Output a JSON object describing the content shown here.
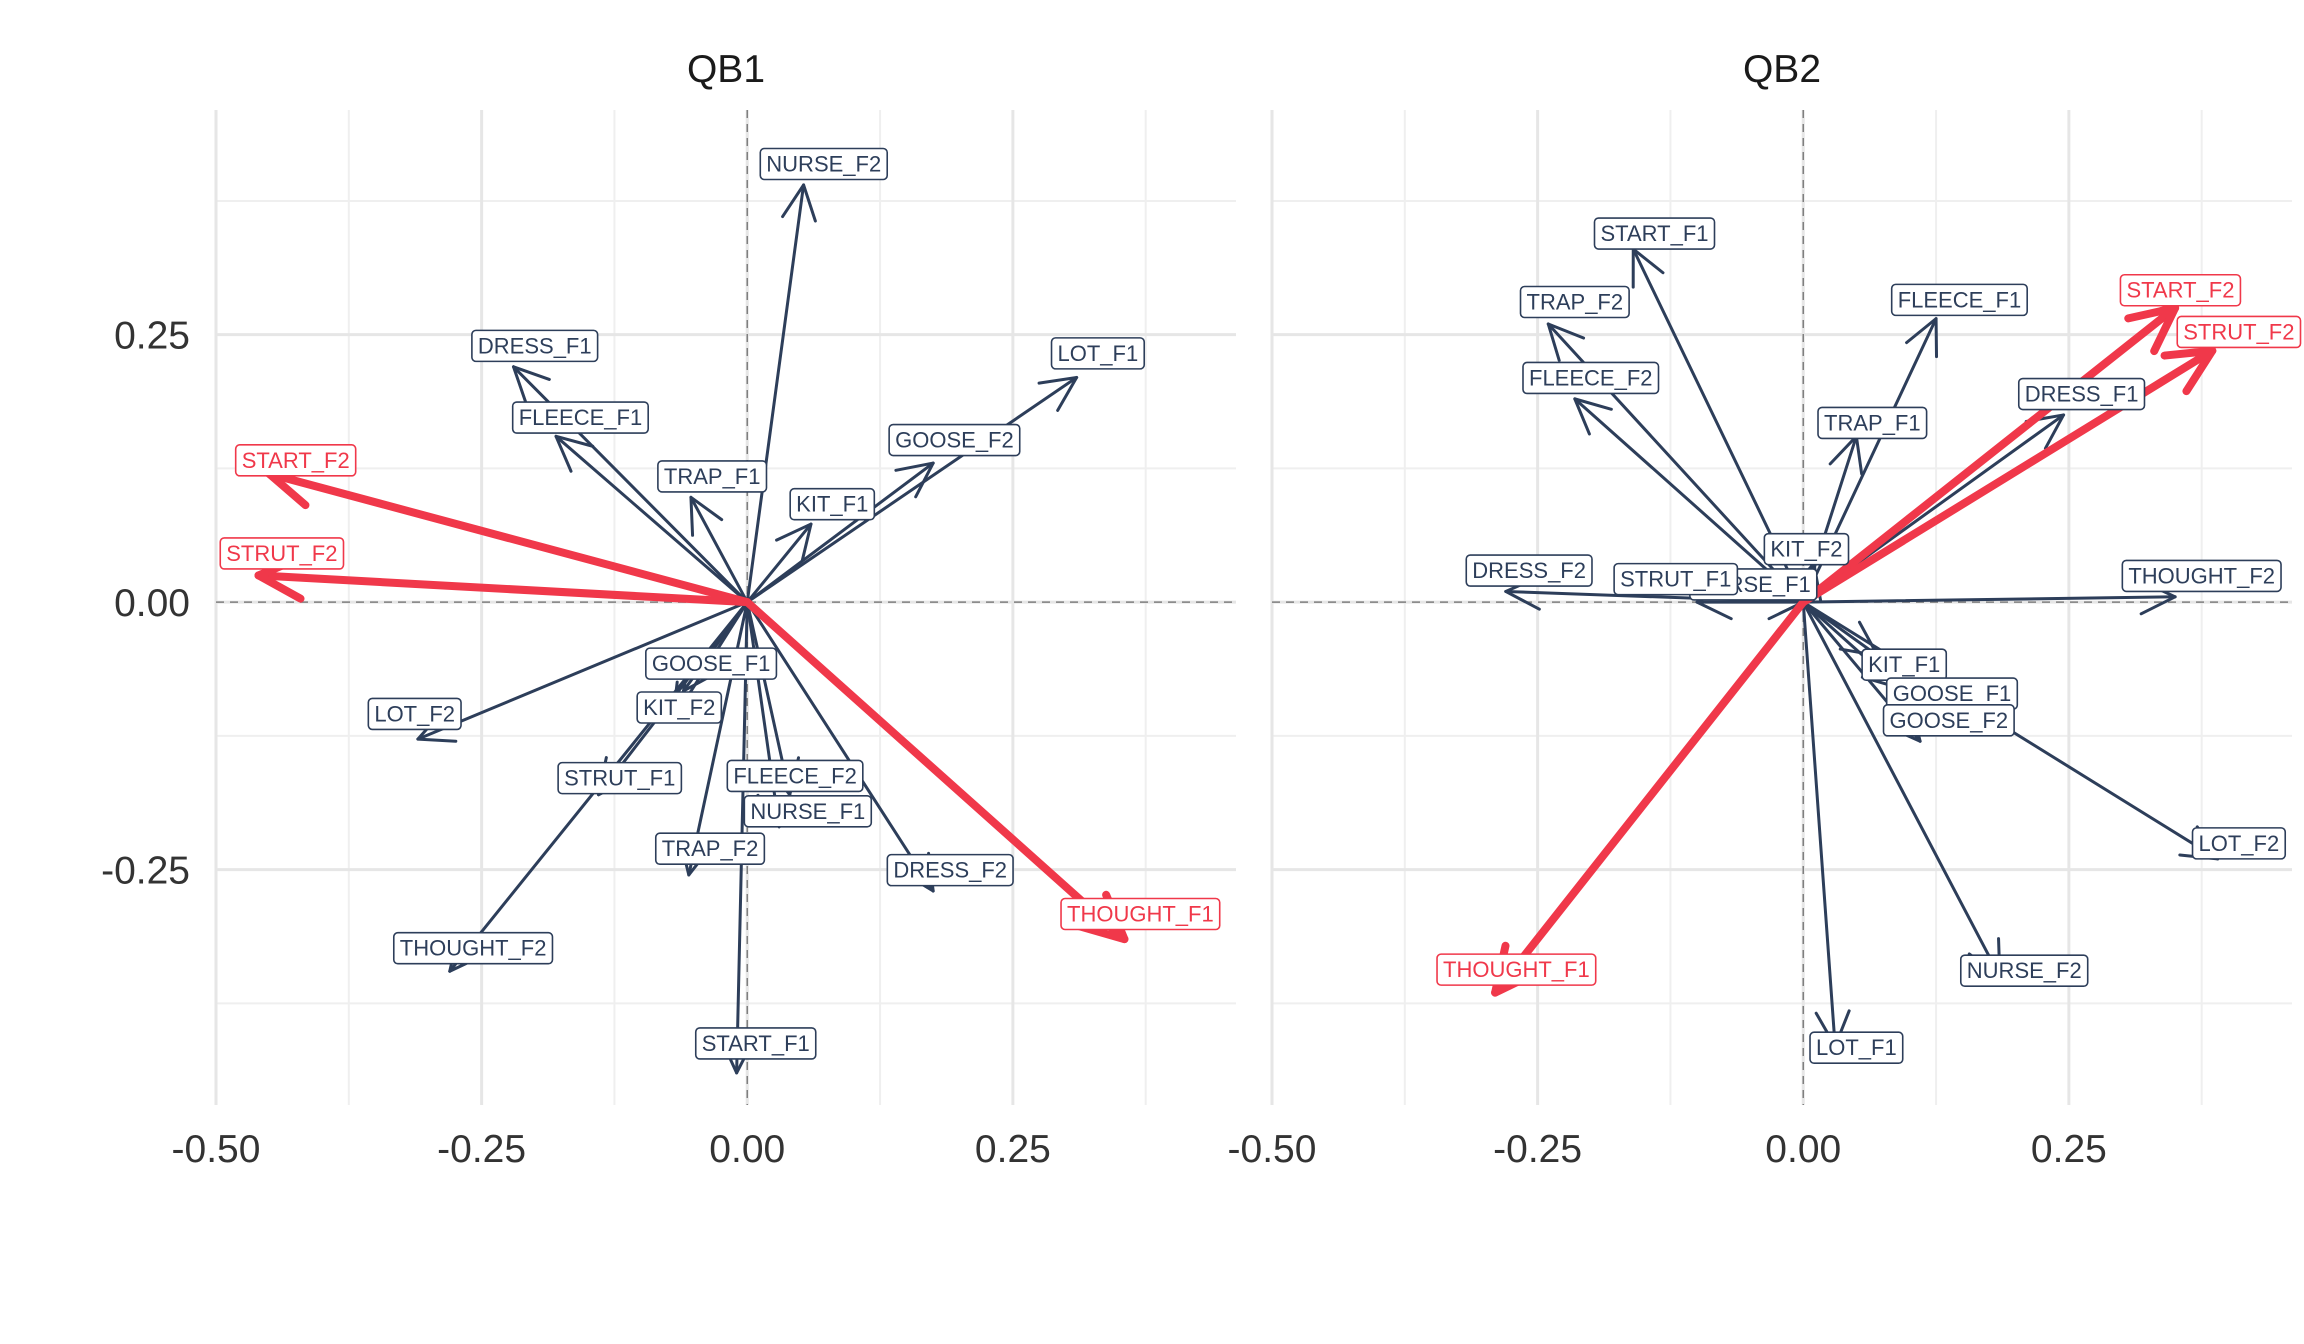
{
  "chart_data": [
    {
      "type": "vector-plot",
      "title": "QB1",
      "xlabel": "",
      "ylabel": "",
      "xlim": [
        -0.5,
        0.46
      ],
      "ylim": [
        -0.47,
        0.46
      ],
      "x_ticks": [
        -0.5,
        -0.25,
        0.0,
        0.25
      ],
      "x_tick_labels": [
        "-0.50",
        "-0.25",
        "0.00",
        "0.25"
      ],
      "y_ticks": [
        -0.25,
        0.0,
        0.25
      ],
      "y_tick_labels": [
        "-0.25",
        "0.00",
        "0.25"
      ],
      "grid": true,
      "vectors": [
        {
          "label": "NURSE_F2",
          "x": 0.053,
          "y": 0.39,
          "lx": 0.072,
          "ly": 0.41,
          "highlight": false
        },
        {
          "label": "DRESS_F1",
          "x": -0.22,
          "y": 0.22,
          "lx": -0.2,
          "ly": 0.24,
          "highlight": false
        },
        {
          "label": "LOT_F1",
          "x": 0.31,
          "y": 0.21,
          "lx": 0.33,
          "ly": 0.233,
          "highlight": false
        },
        {
          "label": "FLEECE_F1",
          "x": -0.18,
          "y": 0.155,
          "lx": -0.157,
          "ly": 0.173,
          "highlight": false
        },
        {
          "label": "GOOSE_F2",
          "x": 0.175,
          "y": 0.13,
          "lx": 0.195,
          "ly": 0.152,
          "highlight": false
        },
        {
          "label": "TRAP_F1",
          "x": -0.053,
          "y": 0.098,
          "lx": -0.033,
          "ly": 0.118,
          "highlight": false
        },
        {
          "label": "KIT_F1",
          "x": 0.06,
          "y": 0.073,
          "lx": 0.08,
          "ly": 0.092,
          "highlight": false
        },
        {
          "label": "START_F2",
          "x": -0.45,
          "y": 0.12,
          "lx": -0.425,
          "ly": 0.133,
          "highlight": true
        },
        {
          "label": "STRUT_F2",
          "x": -0.46,
          "y": 0.025,
          "lx": -0.438,
          "ly": 0.046,
          "highlight": true
        },
        {
          "label": "GOOSE_F1",
          "x": -0.06,
          "y": -0.083,
          "lx": -0.034,
          "ly": -0.057,
          "highlight": false
        },
        {
          "label": "LOT_F2",
          "x": -0.31,
          "y": -0.128,
          "lx": -0.313,
          "ly": -0.104,
          "highlight": false
        },
        {
          "label": "KIT_F2",
          "x": -0.07,
          "y": -0.11,
          "lx": -0.064,
          "ly": -0.098,
          "highlight": false
        },
        {
          "label": "STRUT_F1",
          "x": -0.14,
          "y": -0.18,
          "lx": -0.12,
          "ly": -0.164,
          "highlight": false
        },
        {
          "label": "FLEECE_F2",
          "x": 0.04,
          "y": -0.18,
          "lx": 0.045,
          "ly": -0.162,
          "highlight": false
        },
        {
          "label": "NURSE_F1",
          "x": 0.03,
          "y": -0.21,
          "lx": 0.057,
          "ly": -0.195,
          "highlight": false
        },
        {
          "label": "TRAP_F2",
          "x": -0.055,
          "y": -0.255,
          "lx": -0.035,
          "ly": -0.23,
          "highlight": false
        },
        {
          "label": "DRESS_F2",
          "x": 0.175,
          "y": -0.27,
          "lx": 0.191,
          "ly": -0.25,
          "highlight": false
        },
        {
          "label": "THOUGHT_F1",
          "x": 0.355,
          "y": -0.315,
          "lx": 0.37,
          "ly": -0.291,
          "highlight": true
        },
        {
          "label": "THOUGHT_F2",
          "x": -0.28,
          "y": -0.345,
          "lx": -0.258,
          "ly": -0.323,
          "highlight": false
        },
        {
          "label": "START_F1",
          "x": -0.01,
          "y": -0.44,
          "lx": 0.008,
          "ly": -0.412,
          "highlight": false
        }
      ]
    },
    {
      "type": "vector-plot",
      "title": "QB2",
      "xlabel": "",
      "ylabel": "",
      "xlim": [
        -0.5,
        0.46
      ],
      "ylim": [
        -0.47,
        0.46
      ],
      "x_ticks": [
        -0.5,
        -0.25,
        0.0,
        0.25
      ],
      "x_tick_labels": [
        "-0.50",
        "-0.25",
        "0.00",
        "0.25"
      ],
      "y_ticks": [
        -0.25,
        0.0,
        0.25
      ],
      "y_tick_labels": [
        "-0.25",
        "0.00",
        "0.25"
      ],
      "grid": true,
      "vectors": [
        {
          "label": "START_F1",
          "x": -0.16,
          "y": 0.33,
          "lx": -0.14,
          "ly": 0.345,
          "highlight": false
        },
        {
          "label": "TRAP_F2",
          "x": -0.24,
          "y": 0.26,
          "lx": -0.215,
          "ly": 0.281,
          "highlight": false
        },
        {
          "label": "FLEECE_F1",
          "x": 0.125,
          "y": 0.265,
          "lx": 0.147,
          "ly": 0.283,
          "highlight": false
        },
        {
          "label": "START_F2",
          "x": 0.35,
          "y": 0.275,
          "lx": 0.355,
          "ly": 0.292,
          "highlight": true
        },
        {
          "label": "STRUT_F2",
          "x": 0.385,
          "y": 0.235,
          "lx": 0.41,
          "ly": 0.253,
          "highlight": true
        },
        {
          "label": "FLEECE_F2",
          "x": -0.215,
          "y": 0.19,
          "lx": -0.2,
          "ly": 0.21,
          "highlight": false
        },
        {
          "label": "DRESS_F1",
          "x": 0.245,
          "y": 0.175,
          "lx": 0.262,
          "ly": 0.195,
          "highlight": false
        },
        {
          "label": "TRAP_F1",
          "x": 0.05,
          "y": 0.155,
          "lx": 0.065,
          "ly": 0.168,
          "highlight": false
        },
        {
          "label": "KIT_F2",
          "x": 0.01,
          "y": 0.036,
          "lx": 0.003,
          "ly": 0.05,
          "highlight": false
        },
        {
          "label": "NURSE_F1",
          "x": 0.0,
          "y": 0.0,
          "lx": -0.047,
          "ly": 0.017,
          "highlight": false
        },
        {
          "label": "DRESS_F2",
          "x": -0.28,
          "y": 0.01,
          "lx": -0.258,
          "ly": 0.03,
          "highlight": false
        },
        {
          "label": "STRUT_F1",
          "x": -0.1,
          "y": 0.0,
          "lx": -0.12,
          "ly": 0.022,
          "highlight": false
        },
        {
          "label": "THOUGHT_F2",
          "x": 0.35,
          "y": 0.005,
          "lx": 0.375,
          "ly": 0.025,
          "highlight": false
        },
        {
          "label": "KIT_F1",
          "x": 0.07,
          "y": -0.05,
          "lx": 0.095,
          "ly": -0.058,
          "highlight": false
        },
        {
          "label": "GOOSE_F1",
          "x": 0.09,
          "y": -0.08,
          "lx": 0.14,
          "ly": -0.085,
          "highlight": false
        },
        {
          "label": "GOOSE_F2",
          "x": 0.11,
          "y": -0.13,
          "lx": 0.137,
          "ly": -0.11,
          "highlight": false
        },
        {
          "label": "LOT_F2",
          "x": 0.39,
          "y": -0.24,
          "lx": 0.41,
          "ly": -0.225,
          "highlight": false
        },
        {
          "label": "THOUGHT_F1",
          "x": -0.29,
          "y": -0.365,
          "lx": -0.27,
          "ly": -0.343,
          "highlight": true
        },
        {
          "label": "NURSE_F2",
          "x": 0.185,
          "y": -0.35,
          "lx": 0.208,
          "ly": -0.344,
          "highlight": false
        },
        {
          "label": "LOT_F1",
          "x": 0.03,
          "y": -0.415,
          "lx": 0.05,
          "ly": -0.416,
          "highlight": false
        }
      ]
    }
  ],
  "colors": {
    "default_vector": "#2d3e5a",
    "highlight_vector": "#f0384a",
    "label_bg": "#ffffff"
  }
}
